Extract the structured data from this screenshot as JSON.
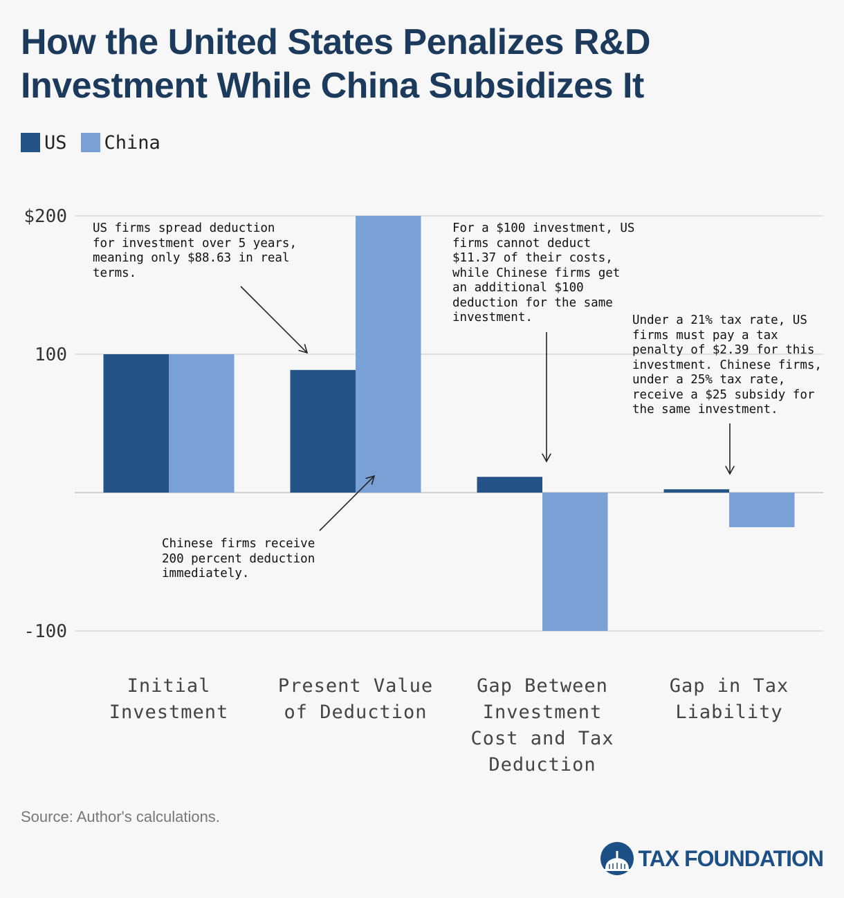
{
  "chart_data": {
    "type": "bar",
    "title": "How the United States Penalizes R&D Investment While China Subsidizes It",
    "categories": [
      [
        "Initial",
        "Investment"
      ],
      [
        "Present Value",
        "of Deduction"
      ],
      [
        "Gap Between",
        "Investment",
        "Cost and Tax",
        "Deduction"
      ],
      [
        "Gap in Tax",
        "Liability"
      ]
    ],
    "series": [
      {
        "name": "US",
        "color": "#245487",
        "values": [
          100,
          88.63,
          11.37,
          2.39
        ]
      },
      {
        "name": "China",
        "color": "#7aa1d6",
        "values": [
          100,
          200,
          -100,
          -25
        ]
      }
    ],
    "ylim": [
      -100,
      200
    ],
    "yticks": [
      {
        "value": 200,
        "label": "$200"
      },
      {
        "value": 100,
        "label": "100"
      },
      {
        "value": -100,
        "label": "-100"
      }
    ],
    "grid": true,
    "legend": "top-left",
    "annotations": [
      "US firms spread deduction\nfor investment over 5 years,\nmeaning only $88.63 in real\nterms.",
      "Chinese firms receive\n200 percent deduction\nimmediately.",
      "For a $100 investment, US\nfirms cannot deduct\n$11.37 of their costs,\nwhile Chinese firms get\nan additional $100\ndeduction for the same\ninvestment.",
      "Under a 21% tax rate, US\nfirms must pay a tax\npenalty of $2.39 for this\ninvestment. Chinese firms,\nunder a 25% tax rate,\nreceive a $25 subsidy for\nthe same investment."
    ]
  },
  "legend": {
    "us_label": "US",
    "china_label": "China"
  },
  "source": "Source: Author's calculations.",
  "brand": "TAX FOUNDATION",
  "colors": {
    "title": "#1b3a5c",
    "us": "#245487",
    "china": "#7aa1d6",
    "grid": "#d9d9d9",
    "brand": "#1b4f86"
  }
}
